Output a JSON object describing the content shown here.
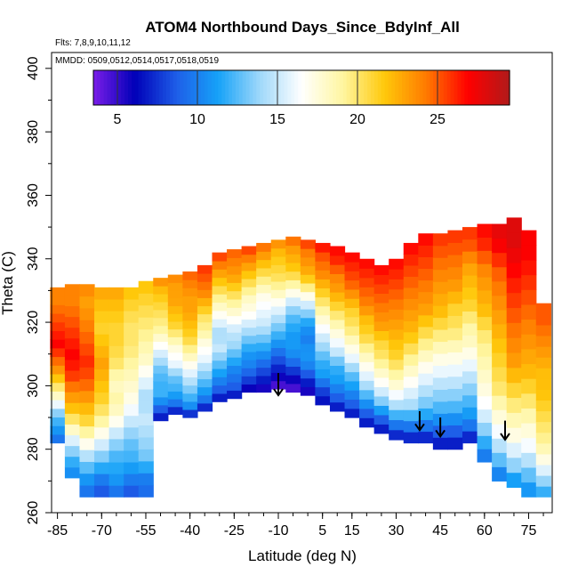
{
  "chart_data": {
    "type": "heatmap",
    "title": "ATOM4 Northbound Days_Since_BdyInf_All",
    "flights_note": "Flts: 7,8,9,10,11,12",
    "dates_note": "MMDD: 0509,0512,0514,0517,0518,0519",
    "xlabel": "Latitude (deg N)",
    "ylabel": "Theta (C)",
    "xlim": [
      -87,
      83
    ],
    "ylim": [
      260,
      405
    ],
    "x_ticks": [
      "-85",
      "-70",
      "-55",
      "-40",
      "-25",
      "-10",
      "5",
      "15",
      "30",
      "45",
      "60",
      "75"
    ],
    "y_ticks": [
      "260",
      "280",
      "300",
      "320",
      "340",
      "360",
      "380",
      "400"
    ],
    "colorbar": {
      "range": [
        3.5,
        29.5
      ],
      "ticks": [
        "5",
        "10",
        "15",
        "20",
        "25"
      ],
      "colors": [
        "#7a1de8",
        "#0000b8",
        "#1e5ee8",
        "#16a2f8",
        "#9fd8fa",
        "#ffffff",
        "#fff6a0",
        "#ffc80a",
        "#ff7a00",
        "#ff0000",
        "#b01a1a"
      ]
    },
    "field": {
      "description_units": "days",
      "lats": [
        -85,
        -80,
        -75,
        -70,
        -65,
        -60,
        -55,
        -50,
        -45,
        -40,
        -35,
        -30,
        -25,
        -20,
        -15,
        -10,
        -5,
        0,
        5,
        10,
        15,
        20,
        25,
        30,
        35,
        40,
        45,
        50,
        55,
        60,
        65,
        70,
        75,
        80
      ],
      "bottom": [
        282,
        271,
        265,
        265,
        265,
        265,
        265,
        289,
        291,
        290,
        292,
        295,
        296,
        298,
        298,
        299,
        298,
        297,
        294,
        292,
        290,
        287,
        285,
        283,
        282,
        282,
        280,
        280,
        282,
        276,
        270,
        268,
        265,
        265
      ],
      "top": [
        331,
        332,
        332,
        331,
        331,
        331,
        333,
        334,
        335,
        336,
        338,
        342,
        343,
        344,
        345,
        346,
        347,
        346,
        345,
        344,
        342,
        340,
        338,
        340,
        345,
        348,
        348,
        349,
        350,
        351,
        351,
        353,
        349,
        326
      ],
      "values": [
        [
          9,
          11,
          13,
          17,
          20,
          23,
          25,
          27,
          26,
          25,
          24,
          24
        ],
        [
          10,
          12,
          15,
          19,
          22,
          24,
          26,
          27,
          26,
          25,
          24,
          24
        ],
        [
          9,
          11,
          14,
          18,
          21,
          23,
          25,
          26,
          25,
          24,
          23,
          24
        ],
        [
          8,
          10,
          13,
          16,
          19,
          21,
          22,
          23,
          22,
          21,
          22,
          23
        ],
        [
          9,
          11,
          12,
          14,
          17,
          19,
          18,
          20,
          21,
          21,
          22,
          23
        ],
        [
          8,
          10,
          12,
          13,
          15,
          17,
          18,
          19,
          20,
          20,
          21,
          22
        ],
        [
          9,
          10,
          13,
          14,
          15,
          14,
          16,
          18,
          19,
          20,
          21,
          22
        ],
        [
          6,
          9,
          12,
          12,
          13,
          15,
          17,
          19,
          20,
          21,
          22,
          24
        ],
        [
          6,
          10,
          12,
          13,
          16,
          17,
          19,
          21,
          22,
          23,
          23,
          24
        ],
        [
          6,
          11,
          13,
          15,
          17,
          19,
          21,
          22,
          23,
          23,
          24,
          25
        ],
        [
          6,
          10,
          12,
          14,
          16,
          17,
          19,
          20,
          22,
          24,
          25,
          26
        ],
        [
          6,
          9,
          11,
          13,
          15,
          14,
          16,
          18,
          20,
          22,
          24,
          26
        ],
        [
          6,
          9,
          10,
          12,
          14,
          15,
          17,
          19,
          21,
          23,
          24,
          25
        ],
        [
          5,
          8,
          10,
          11,
          13,
          15,
          17,
          18,
          20,
          22,
          24,
          26
        ],
        [
          5,
          7,
          9,
          11,
          13,
          15,
          16,
          17,
          19,
          21,
          23,
          25
        ],
        [
          4,
          6,
          8,
          10,
          12,
          14,
          16,
          18,
          20,
          21,
          22,
          24
        ],
        [
          4,
          6,
          9,
          11,
          11,
          12,
          14,
          17,
          20,
          22,
          23,
          25
        ],
        [
          5,
          7,
          10,
          11,
          10,
          11,
          14,
          17,
          21,
          23,
          24,
          26
        ],
        [
          6,
          8,
          11,
          12,
          14,
          16,
          18,
          20,
          22,
          24,
          25,
          27
        ],
        [
          6,
          9,
          11,
          12,
          15,
          17,
          19,
          21,
          23,
          24,
          26,
          27
        ],
        [
          6,
          9,
          11,
          13,
          16,
          18,
          20,
          21,
          23,
          25,
          26,
          27
        ],
        [
          6,
          9,
          12,
          15,
          17,
          19,
          21,
          22,
          24,
          25,
          26,
          27
        ],
        [
          6,
          9,
          13,
          16,
          18,
          20,
          21,
          23,
          24,
          25,
          26,
          27
        ],
        [
          6,
          10,
          14,
          17,
          19,
          21,
          22,
          23,
          24,
          25,
          26,
          27
        ],
        [
          6,
          10,
          14,
          16,
          18,
          20,
          22,
          23,
          24,
          25,
          26,
          27
        ],
        [
          6,
          10,
          13,
          15,
          17,
          19,
          21,
          23,
          24,
          25,
          26,
          27
        ],
        [
          6,
          9,
          12,
          14,
          16,
          18,
          20,
          22,
          23,
          24,
          25,
          26
        ],
        [
          6,
          9,
          12,
          14,
          16,
          18,
          20,
          21,
          23,
          24,
          25,
          26
        ],
        [
          6,
          10,
          12,
          14,
          16,
          18,
          19,
          21,
          22,
          23,
          25,
          26
        ],
        [
          9,
          12,
          15,
          17,
          18,
          19,
          20,
          22,
          23,
          24,
          26,
          27
        ],
        [
          9,
          13,
          16,
          18,
          20,
          21,
          22,
          23,
          24,
          25,
          27,
          28
        ],
        [
          10,
          14,
          17,
          19,
          21,
          23,
          24,
          25,
          26,
          27,
          28,
          28
        ],
        [
          10,
          13,
          16,
          18,
          20,
          22,
          23,
          24,
          25,
          26,
          27,
          27
        ],
        [
          11,
          14,
          17,
          19,
          20,
          21,
          22,
          22,
          23,
          24,
          25,
          25
        ]
      ]
    },
    "arrows": [
      {
        "lat": -10,
        "theta_top": 304,
        "theta_tip": 297
      },
      {
        "lat": 38,
        "theta_top": 292,
        "theta_tip": 286
      },
      {
        "lat": 45,
        "theta_top": 290,
        "theta_tip": 284
      },
      {
        "lat": 67,
        "theta_top": 289,
        "theta_tip": 283
      }
    ]
  }
}
